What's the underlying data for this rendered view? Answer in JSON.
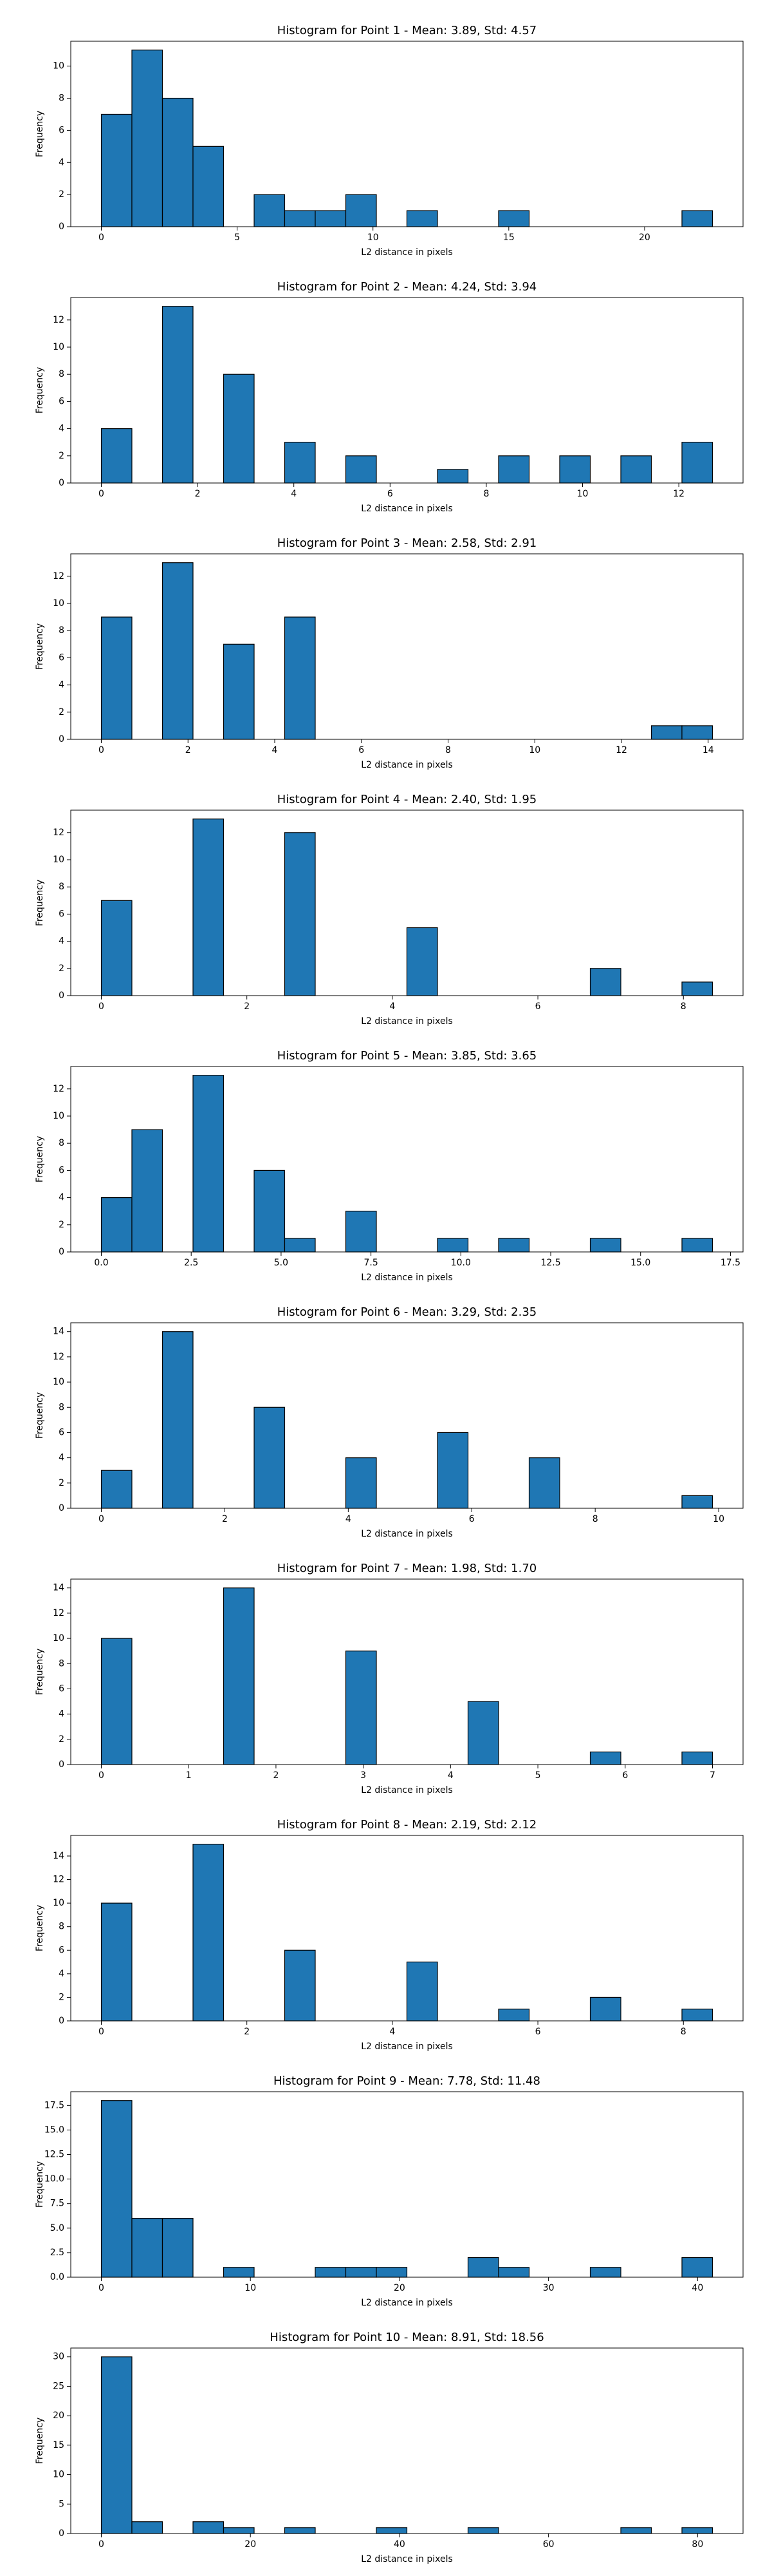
{
  "chart_data": [
    {
      "type": "histogram",
      "title": "Histogram for Point 1 - Mean: 3.89, Std: 4.57",
      "xlabel": "L2 distance in pixels",
      "ylabel": "Frequency",
      "color": "#1f77b4",
      "edgecolor": "#000000",
      "bins": [
        0,
        1.125,
        2.25,
        3.375,
        4.5,
        5.625,
        6.75,
        7.875,
        9,
        10.125,
        11.25,
        12.375,
        13.5,
        14.625,
        15.75,
        16.875,
        18,
        19.125,
        20.25,
        21.375,
        22.5
      ],
      "counts": [
        7,
        11,
        8,
        5,
        0,
        2,
        1,
        1,
        2,
        0,
        1,
        0,
        0,
        1,
        0,
        0,
        0,
        0,
        0,
        1
      ],
      "xlim": [
        -1.125,
        23.625
      ],
      "ylim": [
        0,
        11.55
      ],
      "xticks": [
        0,
        5,
        10,
        15,
        20
      ],
      "yticks": [
        0,
        2,
        4,
        6,
        8,
        10
      ]
    },
    {
      "type": "histogram",
      "title": "Histogram for Point 2 - Mean: 4.24, Std: 3.94",
      "xlabel": "L2 distance in pixels",
      "ylabel": "Frequency",
      "color": "#1f77b4",
      "edgecolor": "#000000",
      "bins": [
        0,
        0.635,
        1.27,
        1.905,
        2.54,
        3.175,
        3.81,
        4.445,
        5.08,
        5.715,
        6.35,
        6.985,
        7.62,
        8.255,
        8.89,
        9.525,
        10.16,
        10.795,
        11.43,
        12.065,
        12.7
      ],
      "counts": [
        4,
        0,
        13,
        0,
        8,
        0,
        3,
        0,
        2,
        0,
        0,
        1,
        0,
        2,
        0,
        2,
        0,
        2,
        0,
        3
      ],
      "xlim": [
        -0.635,
        13.335
      ],
      "ylim": [
        0,
        13.65
      ],
      "xticks": [
        0,
        2,
        4,
        6,
        8,
        10,
        12
      ],
      "yticks": [
        0,
        2,
        4,
        6,
        8,
        10,
        12
      ]
    },
    {
      "type": "histogram",
      "title": "Histogram for Point 3 - Mean: 2.58, Std: 2.91",
      "xlabel": "L2 distance in pixels",
      "ylabel": "Frequency",
      "color": "#1f77b4",
      "edgecolor": "#000000",
      "bins": [
        0,
        0.705,
        1.41,
        2.115,
        2.82,
        3.525,
        4.23,
        4.935,
        5.64,
        6.345,
        7.05,
        7.755,
        8.46,
        9.165,
        9.87,
        10.575,
        11.28,
        11.985,
        12.69,
        13.395,
        14.1
      ],
      "counts": [
        9,
        0,
        13,
        0,
        7,
        0,
        9,
        0,
        0,
        0,
        0,
        0,
        0,
        0,
        0,
        0,
        0,
        0,
        1,
        1
      ],
      "xlim": [
        -0.705,
        14.805
      ],
      "ylim": [
        0,
        13.65
      ],
      "xticks": [
        0,
        2,
        4,
        6,
        8,
        10,
        12,
        14
      ],
      "yticks": [
        0,
        2,
        4,
        6,
        8,
        10,
        12
      ]
    },
    {
      "type": "histogram",
      "title": "Histogram for Point 4 - Mean: 2.40, Std: 1.95",
      "xlabel": "L2 distance in pixels",
      "ylabel": "Frequency",
      "color": "#1f77b4",
      "edgecolor": "#000000",
      "bins": [
        0,
        0.42,
        0.84,
        1.26,
        1.68,
        2.1,
        2.52,
        2.94,
        3.36,
        3.78,
        4.2,
        4.62,
        5.04,
        5.46,
        5.88,
        6.3,
        6.72,
        7.14,
        7.56,
        7.98,
        8.4
      ],
      "counts": [
        7,
        0,
        0,
        13,
        0,
        0,
        12,
        0,
        0,
        0,
        5,
        0,
        0,
        0,
        0,
        0,
        2,
        0,
        0,
        1
      ],
      "xlim": [
        -0.42,
        8.82
      ],
      "ylim": [
        0,
        13.65
      ],
      "xticks": [
        0,
        2,
        4,
        6,
        8
      ],
      "yticks": [
        0,
        2,
        4,
        6,
        8,
        10,
        12
      ]
    },
    {
      "type": "histogram",
      "title": "Histogram for Point 5 - Mean: 3.85, Std: 3.65",
      "xlabel": "L2 distance in pixels",
      "ylabel": "Frequency",
      "color": "#1f77b4",
      "edgecolor": "#000000",
      "bins": [
        0,
        0.85,
        1.7,
        2.55,
        3.4,
        4.25,
        5.1,
        5.95,
        6.8,
        7.65,
        8.5,
        9.35,
        10.2,
        11.05,
        11.9,
        12.75,
        13.6,
        14.45,
        15.3,
        16.15,
        17
      ],
      "counts": [
        4,
        9,
        0,
        13,
        0,
        6,
        1,
        0,
        3,
        0,
        0,
        1,
        0,
        1,
        0,
        0,
        1,
        0,
        0,
        1
      ],
      "xlim": [
        -0.85,
        17.85
      ],
      "ylim": [
        0,
        13.65
      ],
      "xticks": [
        {
          "value": 0,
          "label": "0.0"
        },
        2.5,
        {
          "value": 5,
          "label": "5.0"
        },
        7.5,
        {
          "value": 10,
          "label": "10.0"
        },
        12.5,
        {
          "value": 15,
          "label": "15.0"
        },
        17.5
      ],
      "yticks": [
        0,
        2,
        4,
        6,
        8,
        10,
        12
      ]
    },
    {
      "type": "histogram",
      "title": "Histogram for Point 6 - Mean: 3.29, Std: 2.35",
      "xlabel": "L2 distance in pixels",
      "ylabel": "Frequency",
      "color": "#1f77b4",
      "edgecolor": "#000000",
      "bins": [
        0,
        0.495,
        0.99,
        1.485,
        1.98,
        2.475,
        2.97,
        3.465,
        3.96,
        4.455,
        4.95,
        5.445,
        5.94,
        6.435,
        6.93,
        7.425,
        7.92,
        8.415,
        8.91,
        9.405,
        9.9
      ],
      "counts": [
        3,
        0,
        14,
        0,
        0,
        8,
        0,
        0,
        4,
        0,
        0,
        6,
        0,
        0,
        4,
        0,
        0,
        0,
        0,
        1
      ],
      "xlim": [
        -0.495,
        10.395
      ],
      "ylim": [
        0,
        14.7
      ],
      "xticks": [
        0,
        2,
        4,
        6,
        8,
        10
      ],
      "yticks": [
        0,
        2,
        4,
        6,
        8,
        10,
        12,
        14
      ]
    },
    {
      "type": "histogram",
      "title": "Histogram for Point 7 - Mean: 1.98, Std: 1.70",
      "xlabel": "L2 distance in pixels",
      "ylabel": "Frequency",
      "color": "#1f77b4",
      "edgecolor": "#000000",
      "bins": [
        0,
        0.35,
        0.7,
        1.05,
        1.4,
        1.75,
        2.1,
        2.45,
        2.8,
        3.15,
        3.5,
        3.85,
        4.2,
        4.55,
        4.9,
        5.25,
        5.6,
        5.95,
        6.3,
        6.65,
        7
      ],
      "counts": [
        10,
        0,
        0,
        0,
        14,
        0,
        0,
        0,
        9,
        0,
        0,
        0,
        5,
        0,
        0,
        0,
        1,
        0,
        0,
        1
      ],
      "xlim": [
        -0.35,
        7.35
      ],
      "ylim": [
        0,
        14.7
      ],
      "xticks": [
        0,
        1,
        2,
        3,
        4,
        5,
        6,
        7
      ],
      "yticks": [
        0,
        2,
        4,
        6,
        8,
        10,
        12,
        14
      ]
    },
    {
      "type": "histogram",
      "title": "Histogram for Point 8 - Mean: 2.19, Std: 2.12",
      "xlabel": "L2 distance in pixels",
      "ylabel": "Frequency",
      "color": "#1f77b4",
      "edgecolor": "#000000",
      "bins": [
        0,
        0.42,
        0.84,
        1.26,
        1.68,
        2.1,
        2.52,
        2.94,
        3.36,
        3.78,
        4.2,
        4.62,
        5.04,
        5.46,
        5.88,
        6.3,
        6.72,
        7.14,
        7.56,
        7.98,
        8.4
      ],
      "counts": [
        10,
        0,
        0,
        15,
        0,
        0,
        6,
        0,
        0,
        0,
        5,
        0,
        0,
        1,
        0,
        0,
        2,
        0,
        0,
        1
      ],
      "xlim": [
        -0.42,
        8.82
      ],
      "ylim": [
        0,
        15.75
      ],
      "xticks": [
        0,
        2,
        4,
        6,
        8
      ],
      "yticks": [
        0,
        2,
        4,
        6,
        8,
        10,
        12,
        14
      ]
    },
    {
      "type": "histogram",
      "title": "Histogram for Point 9 - Mean: 7.78, Std: 11.48",
      "xlabel": "L2 distance in pixels",
      "ylabel": "Frequency",
      "color": "#1f77b4",
      "edgecolor": "#000000",
      "bins": [
        0,
        2.05,
        4.1,
        6.15,
        8.2,
        10.25,
        12.3,
        14.35,
        16.4,
        18.45,
        20.5,
        22.55,
        24.6,
        26.65,
        28.7,
        30.75,
        32.8,
        34.85,
        36.9,
        38.95,
        41
      ],
      "counts": [
        18,
        6,
        6,
        0,
        1,
        0,
        0,
        1,
        1,
        1,
        0,
        0,
        2,
        1,
        0,
        0,
        1,
        0,
        0,
        2
      ],
      "xlim": [
        -2.05,
        43.05
      ],
      "ylim": [
        0,
        18.9
      ],
      "xticks": [
        0,
        10,
        20,
        30,
        40
      ],
      "yticks": [
        {
          "value": 0,
          "label": "0.0"
        },
        2.5,
        {
          "value": 5,
          "label": "5.0"
        },
        7.5,
        {
          "value": 10,
          "label": "10.0"
        },
        12.5,
        {
          "value": 15,
          "label": "15.0"
        },
        17.5
      ]
    },
    {
      "type": "histogram",
      "title": "Histogram for Point 10 - Mean: 8.91, Std: 18.56",
      "xlabel": "L2 distance in pixels",
      "ylabel": "Frequency",
      "color": "#1f77b4",
      "edgecolor": "#000000",
      "bins": [
        0,
        4.1,
        8.2,
        12.3,
        16.4,
        20.5,
        24.6,
        28.7,
        32.8,
        36.9,
        41,
        45.1,
        49.2,
        53.3,
        57.4,
        61.5,
        65.6,
        69.7,
        73.8,
        77.9,
        82
      ],
      "counts": [
        30,
        2,
        0,
        2,
        1,
        0,
        1,
        0,
        0,
        1,
        0,
        0,
        1,
        0,
        0,
        0,
        0,
        1,
        0,
        1
      ],
      "xlim": [
        -4.1,
        86.1
      ],
      "ylim": [
        0,
        31.5
      ],
      "xticks": [
        0,
        20,
        40,
        60,
        80
      ],
      "yticks": [
        0,
        5,
        10,
        15,
        20,
        25,
        30
      ]
    }
  ]
}
